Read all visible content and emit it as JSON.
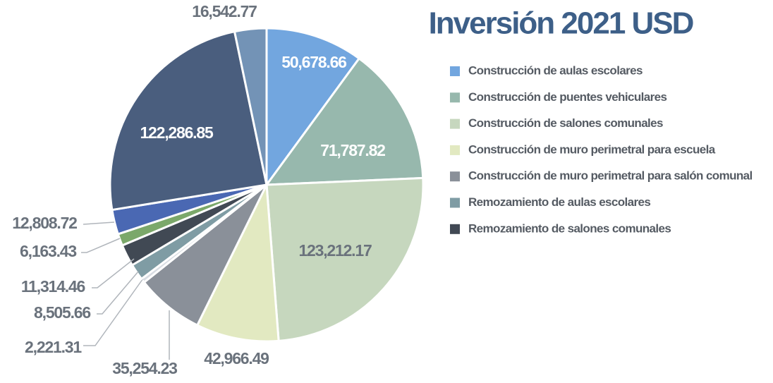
{
  "chart_data": {
    "type": "pie",
    "title": "Inversión 2021 USD",
    "categories": [
      "Construcción de aulas escolares",
      "Construcción de puentes vehiculares",
      "Construcción de salones comunales",
      "Construcción de muro perimetral para escuela",
      "Construcción de muro perimetral para salón comunal",
      null,
      "Remozamiento de aulas escolares",
      "Remozamiento de salones comunales",
      null,
      null,
      null,
      null
    ],
    "values": [
      50678.66,
      71787.82,
      123212.17,
      42966.49,
      35254.23,
      2221.31,
      8505.66,
      11314.46,
      6163.43,
      12808.72,
      122286.85,
      16542.77
    ],
    "value_labels": [
      "50,678.66",
      "71,787.82",
      "123,212.17",
      "42,966.49",
      "35,254.23",
      "2,221.31",
      "8,505.66",
      "11,314.46",
      "6,163.43",
      "12,808.72",
      "122,286.85",
      "16,542.77"
    ],
    "colors": [
      "#72a6df",
      "#97b8ad",
      "#c6d7be",
      "#e2e9c1",
      "#8a9099",
      "#d9dde3",
      "#7f9ca4",
      "#414954",
      "#7ba86a",
      "#4a68b3",
      "#4a5e7e",
      "#7393b6"
    ]
  }
}
